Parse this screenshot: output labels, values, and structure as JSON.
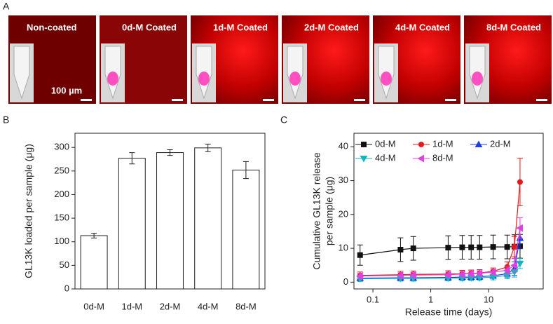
{
  "figure": {
    "label": "A",
    "tiles": [
      "Non-coated",
      "0d-M Coated",
      "1d-M Coated",
      "2d-M Coated",
      "4d-M Coated",
      "8d-M Coated"
    ],
    "scale_bar": "100 µm"
  },
  "chart_data": [
    {
      "type": "bar",
      "panel": "B",
      "ylabel": "GL13K loaded per sample (μg)",
      "categories": [
        "0d-M",
        "1d-M",
        "2d-M",
        "4d-M",
        "8d-M"
      ],
      "values": [
        113,
        277,
        289,
        299,
        252
      ],
      "errors": [
        5,
        12,
        6,
        8,
        18
      ],
      "color": "#ffffff",
      "ylim": [
        0,
        330
      ],
      "yticks": [
        0,
        50,
        100,
        150,
        200,
        250,
        300
      ]
    },
    {
      "type": "line",
      "panel": "C",
      "xlabel": "Release time (days)",
      "ylabel": [
        "Cumulative GL13K release",
        "per sample (μg)"
      ],
      "log_x": true,
      "xlim": [
        0.047,
        88
      ],
      "xticks": [
        0.1,
        1,
        10
      ],
      "ylim": [
        -2,
        44
      ],
      "yticks": [
        0,
        10,
        20,
        30,
        40
      ],
      "x": [
        0.06,
        0.3,
        0.5,
        2,
        3.5,
        5,
        7,
        12,
        21,
        28,
        35
      ],
      "series": [
        {
          "name": "0d-M",
          "color": "#111111",
          "marker": "square",
          "values": [
            8,
            9.6,
            10,
            10.2,
            10.3,
            10.3,
            10.3,
            10.4,
            10.4,
            10.5,
            10.6
          ],
          "errors": [
            3,
            3.5,
            3.5,
            3.5,
            3.5,
            3.5,
            3.5,
            3.5,
            3.5,
            3.5,
            3.5
          ]
        },
        {
          "name": "1d-M",
          "color": "#e31a1c",
          "marker": "circle",
          "values": [
            2,
            2.2,
            2.3,
            2.4,
            2.5,
            2.6,
            2.7,
            3.2,
            4.5,
            10.5,
            29.6
          ],
          "errors": [
            1,
            1,
            1,
            1,
            1,
            1,
            1,
            1,
            1.5,
            3,
            7
          ]
        },
        {
          "name": "2d-M",
          "color": "#1f3fd8",
          "marker": "up",
          "values": [
            1.2,
            1.3,
            1.3,
            1.4,
            1.5,
            1.5,
            1.6,
            1.9,
            2.5,
            4,
            13
          ],
          "errors": [
            0.8,
            0.8,
            0.8,
            0.8,
            0.8,
            0.8,
            0.8,
            0.8,
            1,
            2,
            3
          ]
        },
        {
          "name": "4d-M",
          "color": "#17b3c0",
          "marker": "down",
          "values": [
            1,
            1.1,
            1.1,
            1.2,
            1.2,
            1.3,
            1.3,
            1.5,
            2,
            3,
            5.5
          ],
          "errors": [
            0.8,
            0.8,
            0.8,
            0.8,
            0.8,
            0.8,
            0.8,
            0.8,
            1,
            1.5,
            1.5
          ]
        },
        {
          "name": "8d-M",
          "color": "#e040e0",
          "marker": "left",
          "values": [
            1.8,
            2,
            2.1,
            2.2,
            2.4,
            2.5,
            2.6,
            3,
            3.5,
            5,
            16
          ],
          "errors": [
            0.8,
            0.8,
            0.8,
            0.8,
            0.8,
            0.8,
            0.8,
            0.8,
            1,
            2,
            3
          ]
        }
      ]
    }
  ]
}
